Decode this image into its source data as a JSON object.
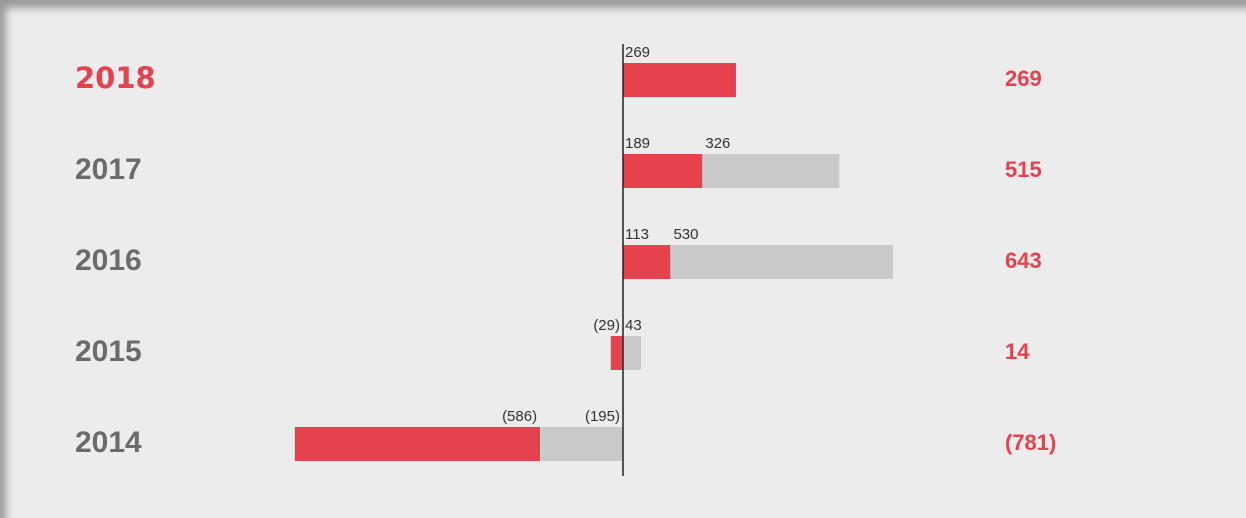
{
  "chart_data": {
    "type": "bar",
    "orientation": "horizontal",
    "stacked": true,
    "categories": [
      "2018",
      "2017",
      "2016",
      "2015",
      "2014"
    ],
    "series": [
      {
        "color": "#e5424d",
        "values": [
          269,
          189,
          113,
          -29,
          -586
        ],
        "value_labels": [
          "269",
          "189",
          "113",
          "(29)",
          "(586)"
        ]
      },
      {
        "color": "#c9c9c9",
        "values": [
          null,
          326,
          530,
          43,
          -195
        ],
        "value_labels": [
          null,
          "326",
          "530",
          "43",
          "(195)"
        ]
      }
    ],
    "totals": {
      "color": "#e5424d",
      "values": [
        269,
        515,
        643,
        14,
        -781
      ],
      "value_labels": [
        "269",
        "515",
        "643",
        "14",
        "(781)"
      ]
    }
  }
}
